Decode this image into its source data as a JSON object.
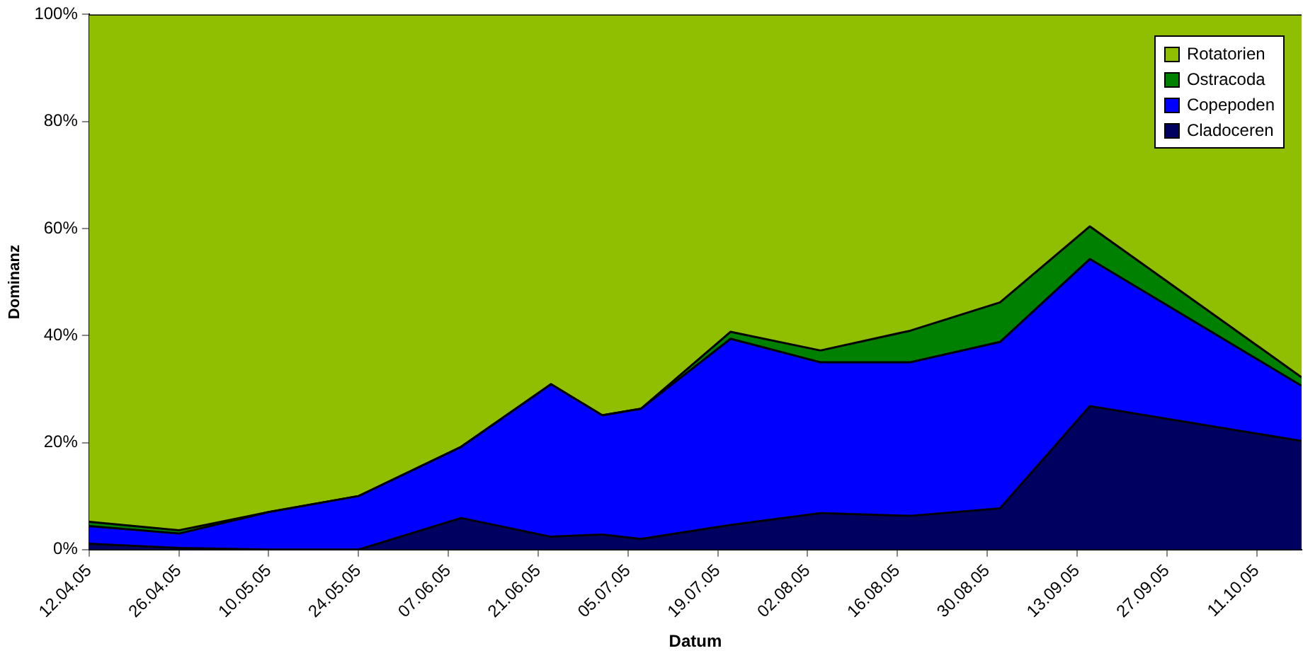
{
  "chart_data": {
    "type": "area",
    "stacked": true,
    "xlabel": "Datum",
    "ylabel": "Dominanz",
    "x": [
      "--04-12",
      "--04-26",
      "--05-10",
      "--05-24",
      "--06-09",
      "--06-23",
      "--07-01",
      "--07-07",
      "--07-21",
      "--08-04",
      "--08-18",
      "--09-01",
      "--09-15",
      "--10-18"
    ],
    "series": [
      {
        "name": "Cladoceren",
        "color": "#000060",
        "values": [
          1.1,
          0.3,
          0,
          0,
          5.9,
          2.4,
          2.8,
          2.0,
          4.6,
          6.8,
          6.3,
          7.7,
          26.8,
          20.3
        ]
      },
      {
        "name": "Copepoden",
        "color": "#0000ff",
        "values": [
          3.3,
          2.7,
          7.0,
          10.0,
          13.3,
          28.5,
          22.3,
          24.3,
          34.8,
          28.2,
          28.7,
          31.1,
          27.5,
          10.3
        ]
      },
      {
        "name": "Ostracoda",
        "color": "#008000",
        "values": [
          0.8,
          0.6,
          0,
          0,
          0,
          0,
          0,
          0,
          1.3,
          2.2,
          5.9,
          7.4,
          6.1,
          1.6
        ]
      },
      {
        "name": "Rotatorien",
        "color": "#8fbf00",
        "values": [
          94.8,
          96.4,
          93.0,
          90.0,
          80.8,
          69.1,
          74.9,
          73.7,
          59.3,
          62.8,
          59.1,
          53.8,
          39.6,
          67.8
        ]
      }
    ],
    "xlim": [
      "--04-12",
      "--10-18"
    ],
    "xticks": [
      {
        "value": "--04-12",
        "label": "12.04.05"
      },
      {
        "value": "--04-26",
        "label": "26.04.05"
      },
      {
        "value": "--05-10",
        "label": "10.05.05"
      },
      {
        "value": "--05-24",
        "label": "24.05.05"
      },
      {
        "value": "--06-07",
        "label": "07.06.05"
      },
      {
        "value": "--06-21",
        "label": "21.06.05"
      },
      {
        "value": "--07-05",
        "label": "05.07.05"
      },
      {
        "value": "--07-19",
        "label": "19.07.05"
      },
      {
        "value": "--08-02",
        "label": "02.08.05"
      },
      {
        "value": "--08-16",
        "label": "16.08.05"
      },
      {
        "value": "--08-30",
        "label": "30.08.05"
      },
      {
        "value": "--09-13",
        "label": "13.09.05"
      },
      {
        "value": "--09-27",
        "label": "27.09.05"
      },
      {
        "value": "--10-11",
        "label": "11.10.05"
      }
    ],
    "ylim": [
      0,
      100
    ],
    "yticks": [
      {
        "value": 0,
        "label": "0%"
      },
      {
        "value": 20,
        "label": "20%"
      },
      {
        "value": 40,
        "label": "40%"
      },
      {
        "value": 60,
        "label": "60%"
      },
      {
        "value": 80,
        "label": "80%"
      },
      {
        "value": 100,
        "label": "100%"
      }
    ],
    "grid": false,
    "legend": "top right"
  }
}
